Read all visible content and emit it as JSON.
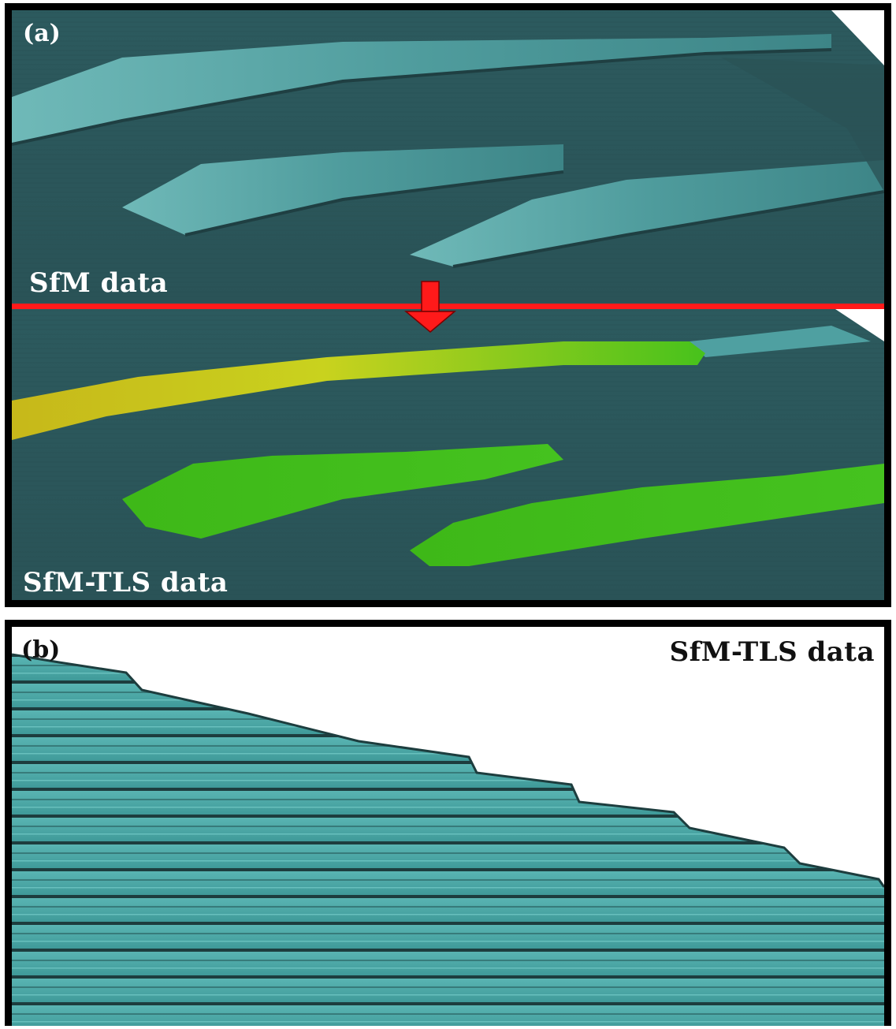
{
  "panel_a": {
    "tag": "(a)",
    "top_label": "SfM data",
    "bottom_label": "SfM-TLS data"
  },
  "panel_b": {
    "tag": "(b)",
    "label": "SfM-TLS data"
  },
  "colors": {
    "terrain": "#2f5e62",
    "ridge_face": "#5aa9aa",
    "tls_yellow": "#c8c81a",
    "tls_green": "#3fb31a",
    "divider": "#ff1a1a",
    "cliff": "#4aa6a6"
  }
}
